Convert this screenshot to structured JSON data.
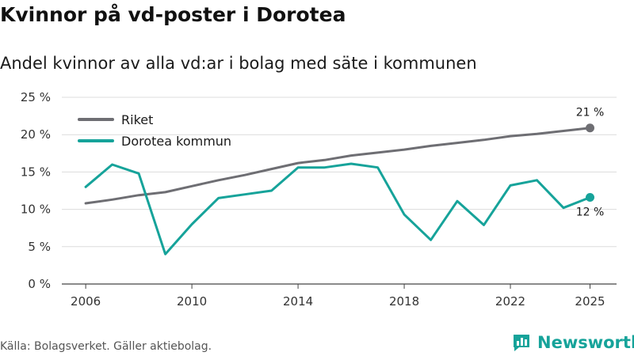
{
  "title": "Kvinnor på vd-poster i Dorotea",
  "subtitle": "Andel kvinnor av alla vd:ar i bolag med säte i kommunen",
  "source": "Källa: Bolagsverket. Gäller aktiebolag.",
  "brand": "Newsworthy",
  "chart_data": {
    "type": "line",
    "title": "Kvinnor på vd-poster i Dorotea",
    "subtitle": "Andel kvinnor av alla vd:ar i bolag med säte i kommunen",
    "xlabel": "",
    "ylabel": "",
    "x": [
      2006,
      2007,
      2008,
      2009,
      2010,
      2011,
      2012,
      2013,
      2014,
      2015,
      2016,
      2017,
      2018,
      2019,
      2020,
      2021,
      2022,
      2023,
      2024,
      2025
    ],
    "xlim": [
      2005.1,
      2026
    ],
    "ylim": [
      0,
      25
    ],
    "y_ticks": [
      0,
      5,
      10,
      15,
      20,
      25
    ],
    "y_tick_labels": [
      "0 %",
      "5 %",
      "10 %",
      "15 %",
      "20 %",
      "25 %"
    ],
    "x_ticks": [
      2006,
      2010,
      2014,
      2018,
      2022,
      2025
    ],
    "x_tick_labels": [
      "2006",
      "2010",
      "2014",
      "2018",
      "2022",
      "2025"
    ],
    "grid": true,
    "legend_position": "top-left",
    "series": [
      {
        "name": "Riket",
        "color": "#6e6e73",
        "values": [
          10.8,
          11.3,
          11.9,
          12.3,
          13.1,
          13.9,
          14.6,
          15.4,
          16.2,
          16.6,
          17.2,
          17.6,
          18.0,
          18.5,
          18.9,
          19.3,
          19.8,
          20.1,
          20.5,
          20.9
        ],
        "end_label": "21 %"
      },
      {
        "name": "Dorotea kommun",
        "color": "#16a39a",
        "values": [
          13.0,
          16.0,
          14.8,
          4.0,
          8.0,
          11.5,
          12.0,
          12.5,
          15.6,
          15.6,
          16.1,
          15.6,
          9.3,
          5.9,
          11.1,
          7.9,
          13.2,
          13.9,
          10.2,
          11.6
        ],
        "end_label": "12 %"
      }
    ]
  }
}
